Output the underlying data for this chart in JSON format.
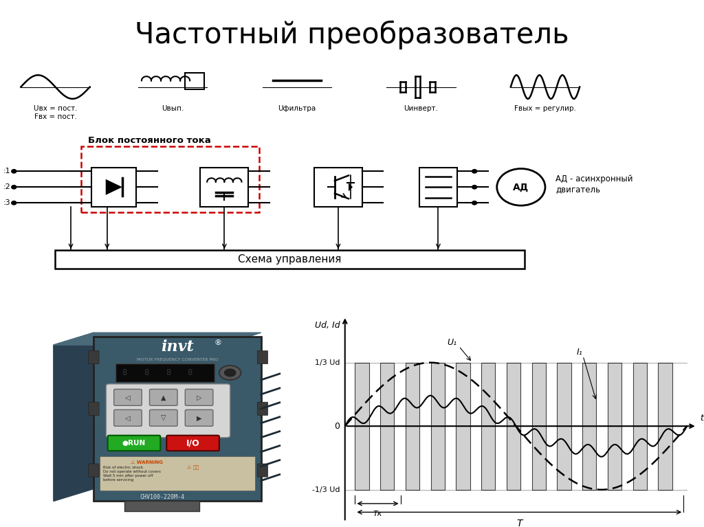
{
  "title": "Частотный преобразователь",
  "title_fontsize": 30,
  "bg_color": "#ffffff",
  "signal_labels": [
    "Uвх = пост.\nFвх = пост.",
    "Uвып.",
    "Uфильтра",
    "Uинверт.",
    "Fвых = регулир."
  ],
  "ad_label": "АД - асинхронный\nдвигатель",
  "schema_label": "Схема управления",
  "dashed_label": "Блок постоянного тока",
  "graph_labels": {
    "ylabel": "Ud, Id",
    "xlabel": "t",
    "y1_3": "1/3 Ud",
    "yn1_3": "-1/3 Ud",
    "zero": "0",
    "U1": "U₁",
    "I1": "I₁",
    "Tk": "Tк",
    "T": "T"
  },
  "invt_body_color": "#3a5a6a",
  "invt_side_color": "#2a4050",
  "invt_panel_color": "#e8e8e8",
  "invt_display_color": "#1a1a1a",
  "invt_green": "#22aa22",
  "invt_red": "#cc1111"
}
